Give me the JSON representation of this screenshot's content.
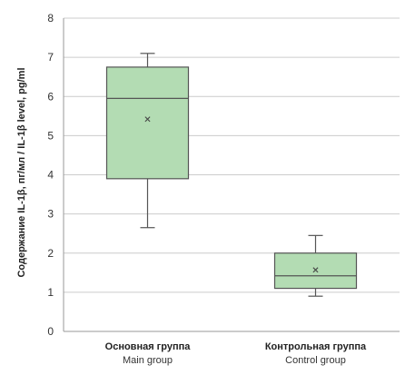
{
  "chart_data": {
    "type": "box",
    "ylabel_ru": "Содержание IL-1β, пг/мл",
    "ylabel_en": "IL-1β level, pg/ml",
    "ylabel_separator": " / ",
    "ylim": [
      0,
      8
    ],
    "yticks": [
      0,
      1,
      2,
      3,
      4,
      5,
      6,
      7,
      8
    ],
    "grid": true,
    "box_color": "#b3dcb3",
    "box_edge_color": "#555555",
    "grid_color": "#cccccc",
    "categories": [
      {
        "label_ru": "Основная группа",
        "label_en": "Main group",
        "min": 2.65,
        "q1": 3.9,
        "median": 5.95,
        "q3": 6.75,
        "max": 7.1,
        "mean": 5.42
      },
      {
        "label_ru": "Контрольная группа",
        "label_en": "Control group",
        "min": 0.9,
        "q1": 1.1,
        "median": 1.42,
        "q3": 2.0,
        "max": 2.45,
        "mean": 1.57
      }
    ]
  }
}
